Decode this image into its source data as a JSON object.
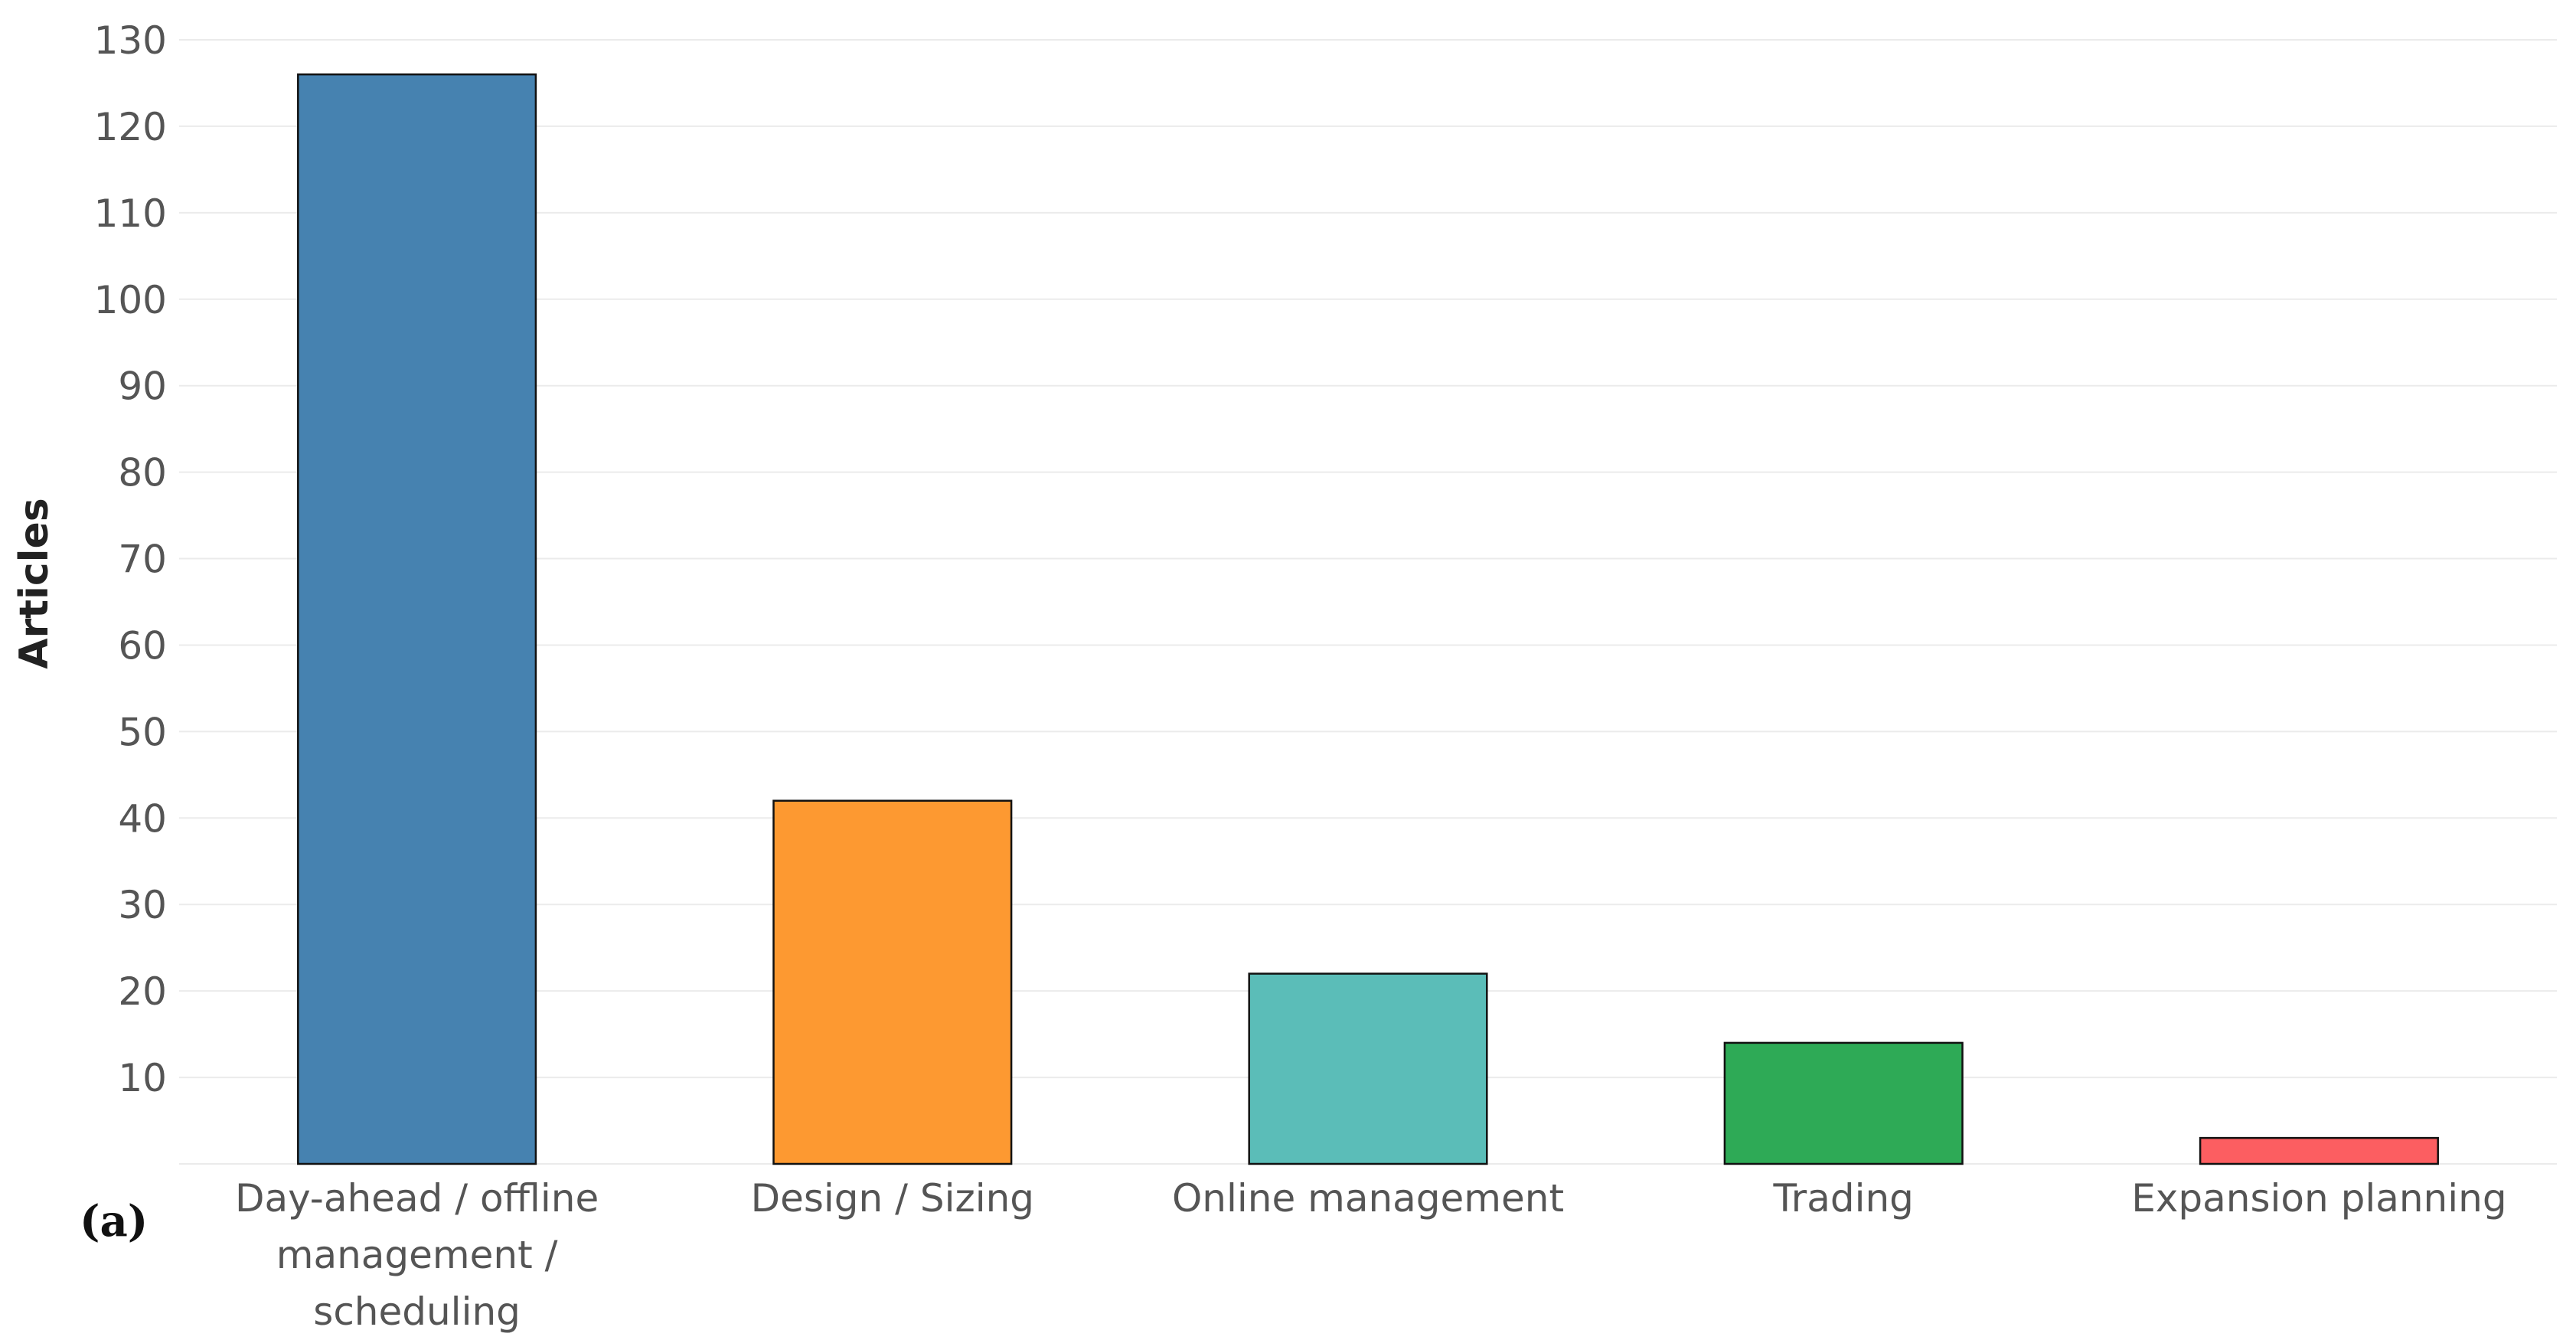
{
  "panel_label": "(a)",
  "chart_data": {
    "type": "bar",
    "ylabel": "Articles",
    "xlabel": "",
    "ylim": [
      0,
      130
    ],
    "yticks": [
      10,
      20,
      30,
      40,
      50,
      60,
      70,
      80,
      90,
      100,
      110,
      120,
      130
    ],
    "grid": true,
    "categories": [
      "Day-ahead / offline management / scheduling",
      "Design / Sizing",
      "Online management",
      "Trading",
      "Expansion planning"
    ],
    "category_lines": [
      [
        "Day-ahead / offline",
        "management /",
        "scheduling"
      ],
      [
        "Design / Sizing"
      ],
      [
        "Online management"
      ],
      [
        "Trading"
      ],
      [
        "Expansion planning"
      ]
    ],
    "values": [
      126,
      42,
      22,
      14,
      3
    ],
    "colors": [
      "#4682b0",
      "#fd9931",
      "#5bbdb8",
      "#2eaa56",
      "#fc5e61"
    ]
  }
}
